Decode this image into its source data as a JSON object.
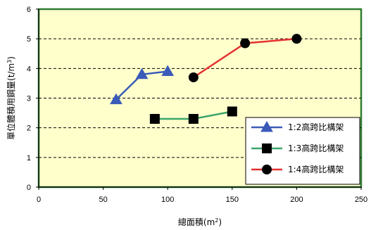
{
  "chart_data": {
    "type": "line",
    "xlabel": "總面積(m",
    "xlabel_sup": "2",
    "xlabel_end": ")",
    "ylabel": "單位體積用鋼量(t/m",
    "ylabel_sup": "3",
    "ylabel_end": ")",
    "xlim": [
      0,
      250
    ],
    "ylim": [
      0,
      6
    ],
    "x_ticks": [
      "0",
      "50",
      "100",
      "150",
      "200",
      "250"
    ],
    "y_ticks": [
      "0",
      "1",
      "2",
      "3",
      "4",
      "5",
      "6"
    ],
    "grid": "horizontal dashed",
    "legend_position": "right",
    "colors": {
      "plot_bg": "#ffffcc",
      "plot_border": "#2e7d32",
      "series_1": "#3a5bb8",
      "series_2": "#3aa66b",
      "series_3": "#e53030",
      "marker": "#000000"
    },
    "series": [
      {
        "name": "1:2高跨比構架",
        "marker": "triangle",
        "points": [
          [
            60,
            2.95
          ],
          [
            80,
            3.8
          ],
          [
            100,
            3.9
          ]
        ]
      },
      {
        "name": "1:3高跨比構架",
        "marker": "square",
        "points": [
          [
            90,
            2.3
          ],
          [
            120,
            2.3
          ],
          [
            150,
            2.55
          ]
        ]
      },
      {
        "name": "1:4高跨比構架",
        "marker": "circle",
        "points": [
          [
            120,
            3.7
          ],
          [
            160,
            4.85
          ],
          [
            200,
            5.0
          ]
        ]
      }
    ]
  }
}
